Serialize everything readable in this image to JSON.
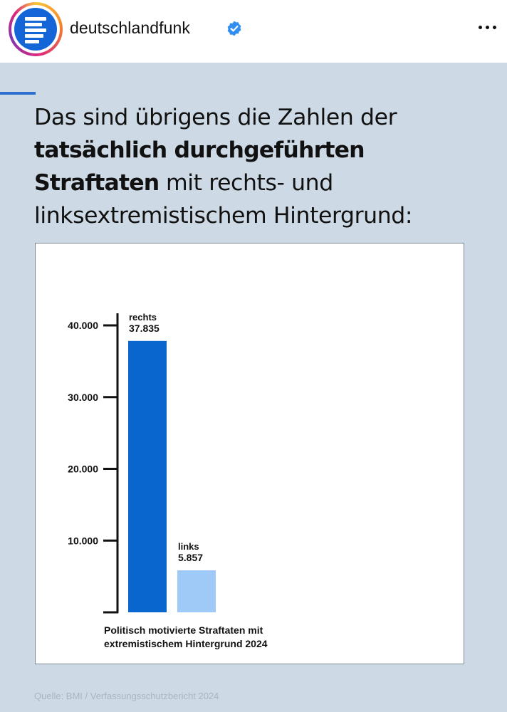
{
  "post": {
    "username": "deutschlandfunk",
    "verified": true,
    "avatar_icon": "deutschlandfunk-logo-icon",
    "menu_icon": "more-dots-icon"
  },
  "graphic": {
    "headline_parts": [
      "Das sind übrigens die Zahlen der ",
      "tatsächlich durchgeführten Straftaten",
      " mit rechts- und linksextremistischem Hintergrund:"
    ],
    "source": "Quelle: BMI / Verfassungsschutzbericht 2024",
    "background_color": "#cdd9e4",
    "accent_color": "#2e6fd0"
  },
  "chart_data": {
    "type": "bar",
    "categories": [
      "rechts",
      "links"
    ],
    "values": [
      37835,
      5857
    ],
    "value_labels": [
      "37.835",
      "5.857"
    ],
    "colors": [
      "#0a66cf",
      "#9fcaf7"
    ],
    "yticks": [
      10000,
      20000,
      30000,
      40000
    ],
    "ytick_labels": [
      "10.000",
      "20.000",
      "30.000",
      "40.000"
    ],
    "ylim": [
      0,
      40000
    ],
    "caption": "Politisch motivierte Straftaten mit extremistischem Hintergrund 2024",
    "grid": false
  }
}
